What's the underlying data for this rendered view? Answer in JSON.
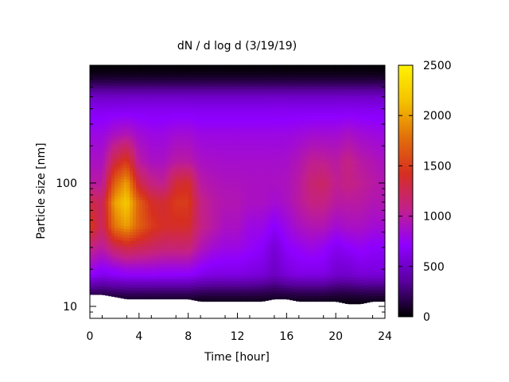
{
  "chart_data": {
    "type": "heatmap",
    "title": "dN / d log d (3/19/19)",
    "xlabel": "Time [hour]",
    "ylabel": "Particle size [nm]",
    "xlim": [
      0,
      24
    ],
    "ylim": [
      8,
      900
    ],
    "y_scale": "log",
    "x_ticks": [
      0,
      4,
      8,
      12,
      16,
      20,
      24
    ],
    "x_tick_labels": [
      "0",
      "4",
      "8",
      "12",
      "16",
      "20",
      "24"
    ],
    "y_ticks": [
      10,
      100
    ],
    "y_tick_labels": [
      "10",
      "100"
    ],
    "colorbar": {
      "range": [
        0,
        2500
      ],
      "ticks": [
        0,
        500,
        1000,
        1500,
        2000,
        2500
      ],
      "tick_labels": [
        "0",
        "500",
        "1000",
        "1500",
        "2000",
        "2500"
      ],
      "palette": [
        "#000000",
        "#5a00a0",
        "#8f00ff",
        "#c2208a",
        "#d62f20",
        "#e2700a",
        "#f4c200",
        "#fff200"
      ]
    },
    "time_hours": [
      0,
      1,
      2,
      3,
      4,
      5,
      6,
      7,
      8,
      9,
      10,
      11,
      12,
      13,
      14,
      15,
      16,
      17,
      18,
      19,
      20,
      21,
      22,
      23,
      24
    ],
    "size_nm": [
      12,
      20,
      30,
      45,
      70,
      100,
      150,
      250,
      400,
      600,
      800
    ],
    "values": [
      [
        450,
        800,
        1100,
        1500,
        1300,
        1000,
        900,
        800,
        650,
        400,
        150
      ],
      [
        400,
        700,
        1000,
        1200,
        1200,
        1000,
        900,
        800,
        650,
        400,
        150
      ],
      [
        450,
        750,
        1200,
        1800,
        2000,
        1700,
        1300,
        900,
        650,
        400,
        150
      ],
      [
        450,
        800,
        1300,
        2000,
        2200,
        2000,
        1500,
        950,
        650,
        400,
        150
      ],
      [
        450,
        800,
        1250,
        1700,
        1700,
        1300,
        1000,
        850,
        650,
        400,
        150
      ],
      [
        450,
        800,
        1200,
        1500,
        1400,
        1100,
        900,
        800,
        650,
        400,
        150
      ],
      [
        450,
        780,
        1150,
        1400,
        1350,
        1050,
        900,
        800,
        650,
        400,
        150
      ],
      [
        450,
        780,
        1150,
        1400,
        1500,
        1350,
        1000,
        850,
        650,
        400,
        150
      ],
      [
        450,
        780,
        1150,
        1400,
        1500,
        1400,
        1000,
        850,
        650,
        400,
        150
      ],
      [
        400,
        700,
        950,
        1100,
        1100,
        1000,
        900,
        800,
        650,
        400,
        150
      ],
      [
        400,
        650,
        850,
        1000,
        1000,
        950,
        880,
        800,
        650,
        400,
        150
      ],
      [
        400,
        650,
        800,
        900,
        950,
        920,
        870,
        800,
        650,
        400,
        150
      ],
      [
        400,
        650,
        800,
        900,
        950,
        920,
        870,
        800,
        650,
        400,
        150
      ],
      [
        400,
        620,
        750,
        800,
        900,
        900,
        870,
        800,
        650,
        400,
        150
      ],
      [
        380,
        600,
        700,
        800,
        900,
        900,
        870,
        800,
        650,
        400,
        150
      ],
      [
        350,
        500,
        550,
        700,
        850,
        900,
        870,
        800,
        650,
        400,
        150
      ],
      [
        380,
        600,
        700,
        800,
        900,
        920,
        880,
        800,
        650,
        400,
        150
      ],
      [
        400,
        650,
        750,
        900,
        1000,
        1000,
        950,
        820,
        650,
        400,
        150
      ],
      [
        400,
        650,
        800,
        950,
        1100,
        1150,
        1050,
        850,
        650,
        400,
        150
      ],
      [
        400,
        650,
        750,
        950,
        1100,
        1200,
        1050,
        850,
        650,
        400,
        150
      ],
      [
        350,
        550,
        650,
        850,
        1000,
        1050,
        1000,
        850,
        650,
        400,
        150
      ],
      [
        350,
        550,
        700,
        900,
        1000,
        1100,
        1100,
        900,
        650,
        400,
        150
      ],
      [
        380,
        600,
        750,
        900,
        1000,
        1050,
        1000,
        850,
        650,
        400,
        150
      ],
      [
        380,
        600,
        700,
        850,
        950,
        1000,
        950,
        820,
        650,
        400,
        150
      ],
      [
        380,
        600,
        700,
        850,
        950,
        950,
        900,
        800,
        650,
        400,
        150
      ]
    ],
    "lower_size_limit_nm": [
      12.5,
      12.5,
      12,
      11.5,
      11.5,
      11.5,
      11.5,
      11.5,
      11.5,
      11,
      11,
      11,
      11,
      11,
      11,
      11.5,
      11.5,
      11,
      11,
      11,
      11,
      10.5,
      10.5,
      11,
      11
    ],
    "upper_size_limit_nm": 900
  }
}
